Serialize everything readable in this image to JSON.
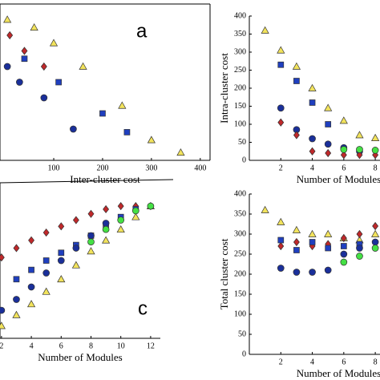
{
  "chart_data": [
    {
      "type": "scatter",
      "annotation": "a",
      "x_label": "Inter-cluster cost",
      "xlim": [
        -10,
        420
      ],
      "xticks": [
        100,
        200,
        300,
        400
      ],
      "ylim": [
        0,
        10
      ],
      "series": [
        {
          "color": "#f2e35c",
          "marker": "triangle",
          "x": [
            5,
            60,
            100,
            160,
            240,
            300,
            360
          ],
          "values": [
            9,
            8.5,
            7.5,
            6,
            3.5,
            1.3,
            0.5
          ]
        },
        {
          "color": "#1f3fbf",
          "marker": "square",
          "x": [
            40,
            110,
            200,
            250
          ],
          "values": [
            6.5,
            5,
            3,
            1.8
          ]
        },
        {
          "color": "#1a2f9a",
          "marker": "circle",
          "x": [
            5,
            30,
            80,
            140
          ],
          "values": [
            6,
            5,
            4,
            2
          ]
        },
        {
          "color": "#c0282a",
          "marker": "diamond",
          "x": [
            10,
            40,
            80
          ],
          "values": [
            8,
            7,
            6
          ]
        }
      ]
    },
    {
      "type": "scatter",
      "x_label": "Number of Modules",
      "y_label": "Intra-cluster cost",
      "xlim": [
        0,
        8.3
      ],
      "xticks": [
        2,
        4,
        6,
        8
      ],
      "ylim": [
        0,
        400
      ],
      "yticks": [
        0,
        50,
        100,
        150,
        200,
        250,
        300,
        350,
        400
      ],
      "series": [
        {
          "color": "#f2e35c",
          "marker": "triangle",
          "x": [
            1,
            2,
            3,
            4,
            5,
            6,
            7,
            8
          ],
          "values": [
            360,
            305,
            260,
            200,
            145,
            110,
            70,
            62
          ]
        },
        {
          "color": "#1f3fbf",
          "marker": "square",
          "x": [
            2,
            3,
            4,
            5
          ],
          "values": [
            265,
            220,
            160,
            100
          ]
        },
        {
          "color": "#1a2f9a",
          "marker": "circle",
          "x": [
            2,
            3,
            4,
            5,
            6,
            7
          ],
          "values": [
            145,
            85,
            60,
            45,
            35,
            25
          ]
        },
        {
          "color": "#c0282a",
          "marker": "diamond",
          "x": [
            2,
            3,
            4,
            5,
            6,
            7,
            8
          ],
          "values": [
            105,
            70,
            25,
            20,
            15,
            15,
            15
          ]
        },
        {
          "color": "#44e044",
          "marker": "circle",
          "x": [
            6,
            7,
            8
          ],
          "values": [
            30,
            30,
            28
          ]
        }
      ]
    },
    {
      "type": "scatter",
      "annotation": "c",
      "x_label": "Number of Modules",
      "xlim": [
        1.9,
        12.65
      ],
      "xticks": [
        2,
        4,
        6,
        8,
        10,
        12
      ],
      "ylim": [
        0,
        100
      ],
      "series": [
        {
          "color": "#c0282a",
          "marker": "diamond",
          "x": [
            2,
            3,
            4,
            5,
            6,
            7,
            8,
            9,
            10,
            11,
            12
          ],
          "values": [
            52,
            58,
            63,
            68,
            72,
            76,
            80,
            83,
            85,
            85,
            85
          ]
        },
        {
          "color": "#1f3fbf",
          "marker": "square",
          "x": [
            3,
            4,
            5,
            6,
            7,
            8,
            9,
            10,
            11
          ],
          "values": [
            38,
            44,
            50,
            55,
            60,
            66,
            72,
            78,
            83
          ]
        },
        {
          "color": "#1a2f9a",
          "marker": "circle",
          "x": [
            2,
            3,
            4,
            5,
            6,
            7,
            8,
            9
          ],
          "values": [
            18,
            25,
            33,
            42,
            50,
            58,
            66,
            74
          ]
        },
        {
          "color": "#f2e35c",
          "marker": "triangle",
          "x": [
            2,
            3,
            4,
            5,
            6,
            7,
            8,
            9,
            10,
            11,
            12
          ],
          "values": [
            8,
            15,
            22,
            30,
            38,
            47,
            56,
            63,
            70,
            78,
            85
          ]
        },
        {
          "color": "#44e044",
          "marker": "circle",
          "x": [
            8,
            9,
            10,
            11,
            12
          ],
          "values": [
            62,
            70,
            76,
            82,
            85
          ]
        }
      ]
    },
    {
      "type": "scatter",
      "x_label": "Number of Modules",
      "y_label": "Total cluster cost",
      "xlim": [
        0,
        8.3
      ],
      "xticks": [
        2,
        4,
        6,
        8
      ],
      "ylim": [
        0,
        400
      ],
      "yticks": [
        0,
        50,
        100,
        150,
        200,
        250,
        300,
        350,
        400
      ],
      "series": [
        {
          "color": "#f2e35c",
          "marker": "triangle",
          "x": [
            1,
            2,
            3,
            4,
            5,
            6,
            7,
            8
          ],
          "values": [
            360,
            330,
            310,
            300,
            300,
            290,
            285,
            300
          ]
        },
        {
          "color": "#c0282a",
          "marker": "diamond",
          "x": [
            2,
            3,
            4,
            5,
            6,
            7,
            8
          ],
          "values": [
            270,
            280,
            270,
            275,
            290,
            300,
            320
          ]
        },
        {
          "color": "#1f3fbf",
          "marker": "square",
          "x": [
            2,
            3,
            4,
            5,
            6,
            7
          ],
          "values": [
            285,
            260,
            280,
            265,
            270,
            275
          ]
        },
        {
          "color": "#1a2f9a",
          "marker": "circle",
          "x": [
            2,
            3,
            4,
            5,
            6,
            7,
            8
          ],
          "values": [
            215,
            205,
            205,
            210,
            250,
            265,
            280
          ]
        },
        {
          "color": "#44e044",
          "marker": "circle",
          "x": [
            6,
            7,
            8
          ],
          "values": [
            230,
            245,
            265
          ]
        }
      ]
    }
  ]
}
